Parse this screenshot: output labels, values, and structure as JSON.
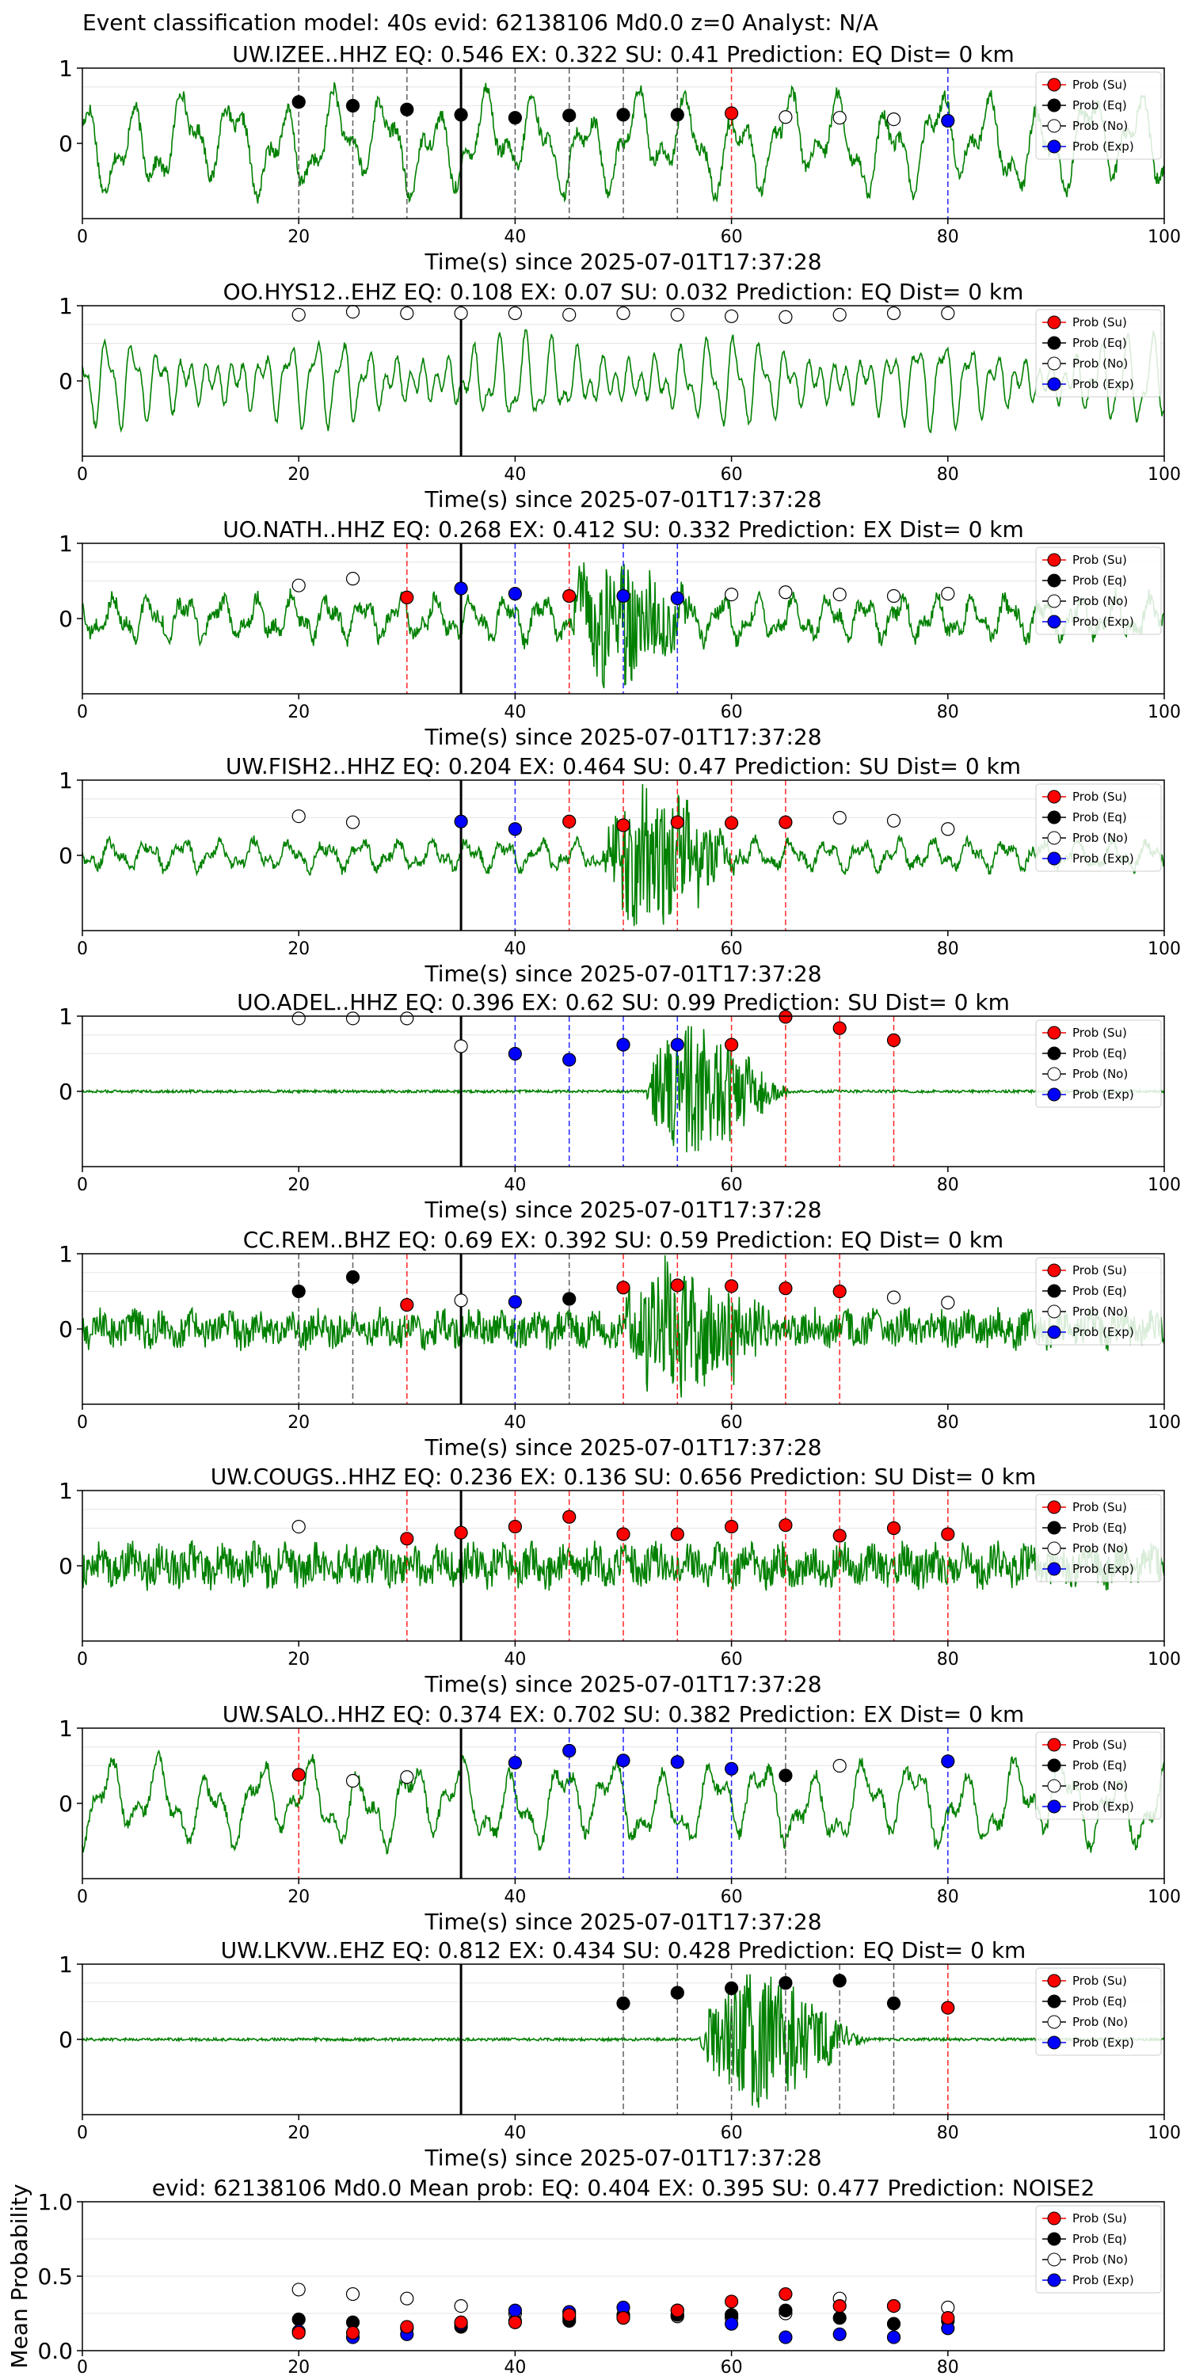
{
  "figure_title": "Event classification model: 40s evid: 62138106 Md0.0 z=0 Analyst: N/A",
  "legend_labels": [
    "Prob (Su)",
    "Prob (Eq)",
    "Prob (No)",
    "Prob (Exp)"
  ],
  "colors": {
    "waveform": "#008000",
    "su": "#ff0000",
    "eq": "#000000",
    "no": "#ffffff",
    "exp": "#0000ff",
    "origin_line": "#000000"
  },
  "chart_data": [
    {
      "type": "line",
      "title": "UW.IZEE..HHZ   EQ: 0.546  EX: 0.322  SU: 0.41   Prediction: EQ    Dist= 0 km",
      "xlabel": "Time(s) since 2025-07-01T17:37:28",
      "xlim": [
        0,
        100
      ],
      "ylim": [
        -1,
        1
      ],
      "xticks": [
        0,
        20,
        40,
        60,
        80,
        100
      ],
      "yticks": [
        0,
        1
      ],
      "origin_time": 35,
      "waveform": {
        "style": "low_frequency",
        "amplitude": 0.75,
        "burst": null
      },
      "markers": [
        {
          "t": 20,
          "p": 0.55,
          "cls": "eq"
        },
        {
          "t": 25,
          "p": 0.5,
          "cls": "eq"
        },
        {
          "t": 30,
          "p": 0.45,
          "cls": "eq"
        },
        {
          "t": 35,
          "p": 0.38,
          "cls": "eq"
        },
        {
          "t": 40,
          "p": 0.34,
          "cls": "eq"
        },
        {
          "t": 45,
          "p": 0.37,
          "cls": "eq"
        },
        {
          "t": 50,
          "p": 0.38,
          "cls": "eq"
        },
        {
          "t": 55,
          "p": 0.38,
          "cls": "eq"
        },
        {
          "t": 60,
          "p": 0.4,
          "cls": "su"
        },
        {
          "t": 65,
          "p": 0.35,
          "cls": "no"
        },
        {
          "t": 70,
          "p": 0.34,
          "cls": "no"
        },
        {
          "t": 75,
          "p": 0.32,
          "cls": "no"
        },
        {
          "t": 80,
          "p": 0.3,
          "cls": "exp"
        }
      ]
    },
    {
      "type": "line",
      "title": "OO.HYS12..EHZ   EQ: 0.108  EX: 0.07  SU: 0.032   Prediction: EQ    Dist= 0 km",
      "xlabel": "Time(s) since 2025-07-01T17:37:28",
      "xlim": [
        0,
        100
      ],
      "ylim": [
        -1,
        1
      ],
      "xticks": [
        0,
        20,
        40,
        60,
        80,
        100
      ],
      "yticks": [
        0,
        1
      ],
      "origin_time": 35,
      "waveform": {
        "style": "oscillating",
        "amplitude": 0.8,
        "burst": null
      },
      "markers": [
        {
          "t": 20,
          "p": 0.88,
          "cls": "no"
        },
        {
          "t": 25,
          "p": 0.92,
          "cls": "no"
        },
        {
          "t": 30,
          "p": 0.9,
          "cls": "no"
        },
        {
          "t": 35,
          "p": 0.9,
          "cls": "no"
        },
        {
          "t": 40,
          "p": 0.9,
          "cls": "no"
        },
        {
          "t": 45,
          "p": 0.88,
          "cls": "no"
        },
        {
          "t": 50,
          "p": 0.9,
          "cls": "no"
        },
        {
          "t": 55,
          "p": 0.88,
          "cls": "no"
        },
        {
          "t": 60,
          "p": 0.86,
          "cls": "no"
        },
        {
          "t": 65,
          "p": 0.85,
          "cls": "no"
        },
        {
          "t": 70,
          "p": 0.88,
          "cls": "no"
        },
        {
          "t": 75,
          "p": 0.9,
          "cls": "no"
        },
        {
          "t": 80,
          "p": 0.9,
          "cls": "no"
        }
      ]
    },
    {
      "type": "line",
      "title": "UO.NATH..HHZ   EQ: 0.268  EX: 0.412  SU: 0.332   Prediction: EX    Dist= 0 km",
      "xlabel": "Time(s) since 2025-07-01T17:37:28",
      "xlim": [
        0,
        100
      ],
      "ylim": [
        -1,
        1
      ],
      "xticks": [
        0,
        20,
        40,
        60,
        80,
        100
      ],
      "yticks": [
        0,
        1
      ],
      "origin_time": 35,
      "waveform": {
        "style": "mixed",
        "amplitude": 0.45,
        "burst": [
          45,
          58,
          0.9
        ]
      },
      "markers": [
        {
          "t": 20,
          "p": 0.44,
          "cls": "no"
        },
        {
          "t": 25,
          "p": 0.53,
          "cls": "no"
        },
        {
          "t": 30,
          "p": 0.28,
          "cls": "su"
        },
        {
          "t": 35,
          "p": 0.4,
          "cls": "exp"
        },
        {
          "t": 40,
          "p": 0.33,
          "cls": "exp"
        },
        {
          "t": 45,
          "p": 0.3,
          "cls": "su"
        },
        {
          "t": 50,
          "p": 0.3,
          "cls": "exp"
        },
        {
          "t": 55,
          "p": 0.27,
          "cls": "exp"
        },
        {
          "t": 60,
          "p": 0.32,
          "cls": "no"
        },
        {
          "t": 65,
          "p": 0.35,
          "cls": "no"
        },
        {
          "t": 70,
          "p": 0.32,
          "cls": "no"
        },
        {
          "t": 75,
          "p": 0.3,
          "cls": "no"
        },
        {
          "t": 80,
          "p": 0.33,
          "cls": "no"
        }
      ]
    },
    {
      "type": "line",
      "title": "UW.FISH2..HHZ   EQ: 0.204  EX: 0.464  SU: 0.47   Prediction: SU    Dist= 0 km",
      "xlabel": "Time(s) since 2025-07-01T17:37:28",
      "xlim": [
        0,
        100
      ],
      "ylim": [
        -1,
        1
      ],
      "xticks": [
        0,
        20,
        40,
        60,
        80,
        100
      ],
      "yticks": [
        0,
        1
      ],
      "origin_time": 35,
      "waveform": {
        "style": "mixed",
        "amplitude": 0.3,
        "burst": [
          48,
          62,
          0.95
        ]
      },
      "markers": [
        {
          "t": 20,
          "p": 0.52,
          "cls": "no"
        },
        {
          "t": 25,
          "p": 0.44,
          "cls": "no"
        },
        {
          "t": 35,
          "p": 0.45,
          "cls": "exp"
        },
        {
          "t": 40,
          "p": 0.35,
          "cls": "exp"
        },
        {
          "t": 45,
          "p": 0.45,
          "cls": "su"
        },
        {
          "t": 50,
          "p": 0.4,
          "cls": "su"
        },
        {
          "t": 55,
          "p": 0.44,
          "cls": "su"
        },
        {
          "t": 60,
          "p": 0.43,
          "cls": "su"
        },
        {
          "t": 65,
          "p": 0.44,
          "cls": "su"
        },
        {
          "t": 70,
          "p": 0.5,
          "cls": "no"
        },
        {
          "t": 75,
          "p": 0.46,
          "cls": "no"
        },
        {
          "t": 80,
          "p": 0.35,
          "cls": "no"
        }
      ]
    },
    {
      "type": "line",
      "title": "UO.ADEL..HHZ   EQ: 0.396  EX: 0.62  SU: 0.99   Prediction: SU    Dist= 0 km",
      "xlabel": "Time(s) since 2025-07-01T17:37:28",
      "xlim": [
        0,
        100
      ],
      "ylim": [
        -1,
        1
      ],
      "xticks": [
        0,
        20,
        40,
        60,
        80,
        100
      ],
      "yticks": [
        0,
        1
      ],
      "origin_time": 35,
      "waveform": {
        "style": "quiet",
        "amplitude": 0.03,
        "burst": [
          52,
          66,
          0.95
        ]
      },
      "markers": [
        {
          "t": 20,
          "p": 0.97,
          "cls": "no"
        },
        {
          "t": 25,
          "p": 0.97,
          "cls": "no"
        },
        {
          "t": 30,
          "p": 0.97,
          "cls": "no"
        },
        {
          "t": 35,
          "p": 0.6,
          "cls": "no"
        },
        {
          "t": 40,
          "p": 0.5,
          "cls": "exp"
        },
        {
          "t": 45,
          "p": 0.42,
          "cls": "exp"
        },
        {
          "t": 50,
          "p": 0.62,
          "cls": "exp"
        },
        {
          "t": 55,
          "p": 0.62,
          "cls": "exp"
        },
        {
          "t": 60,
          "p": 0.62,
          "cls": "su"
        },
        {
          "t": 65,
          "p": 0.99,
          "cls": "su"
        },
        {
          "t": 70,
          "p": 0.84,
          "cls": "su"
        },
        {
          "t": 75,
          "p": 0.68,
          "cls": "su"
        }
      ]
    },
    {
      "type": "line",
      "title": "CC.REM..BHZ   EQ: 0.69  EX: 0.392  SU: 0.59   Prediction: EQ    Dist= 0 km",
      "xlabel": "Time(s) since 2025-07-01T17:37:28",
      "xlim": [
        0,
        100
      ],
      "ylim": [
        -1,
        1
      ],
      "xticks": [
        0,
        20,
        40,
        60,
        80,
        100
      ],
      "yticks": [
        0,
        1
      ],
      "origin_time": 35,
      "waveform": {
        "style": "noisy",
        "amplitude": 0.4,
        "burst": [
          50,
          66,
          0.9
        ]
      },
      "markers": [
        {
          "t": 20,
          "p": 0.5,
          "cls": "eq"
        },
        {
          "t": 25,
          "p": 0.69,
          "cls": "eq"
        },
        {
          "t": 30,
          "p": 0.32,
          "cls": "su"
        },
        {
          "t": 35,
          "p": 0.38,
          "cls": "no"
        },
        {
          "t": 40,
          "p": 0.36,
          "cls": "exp"
        },
        {
          "t": 45,
          "p": 0.4,
          "cls": "eq"
        },
        {
          "t": 50,
          "p": 0.55,
          "cls": "su"
        },
        {
          "t": 55,
          "p": 0.58,
          "cls": "su"
        },
        {
          "t": 60,
          "p": 0.57,
          "cls": "su"
        },
        {
          "t": 65,
          "p": 0.54,
          "cls": "su"
        },
        {
          "t": 70,
          "p": 0.5,
          "cls": "su"
        },
        {
          "t": 75,
          "p": 0.42,
          "cls": "no"
        },
        {
          "t": 80,
          "p": 0.35,
          "cls": "no"
        }
      ]
    },
    {
      "type": "line",
      "title": "UW.COUGS..HHZ   EQ: 0.236  EX: 0.136  SU: 0.656   Prediction: SU    Dist= 0 km",
      "xlabel": "Time(s) since 2025-07-01T17:37:28",
      "xlim": [
        0,
        100
      ],
      "ylim": [
        -1,
        1
      ],
      "xticks": [
        0,
        20,
        40,
        60,
        80,
        100
      ],
      "yticks": [
        0,
        1
      ],
      "origin_time": 35,
      "waveform": {
        "style": "noisy",
        "amplitude": 0.45,
        "burst": null
      },
      "markers": [
        {
          "t": 20,
          "p": 0.52,
          "cls": "no"
        },
        {
          "t": 30,
          "p": 0.36,
          "cls": "su"
        },
        {
          "t": 35,
          "p": 0.44,
          "cls": "su"
        },
        {
          "t": 40,
          "p": 0.52,
          "cls": "su"
        },
        {
          "t": 45,
          "p": 0.65,
          "cls": "su"
        },
        {
          "t": 50,
          "p": 0.42,
          "cls": "su"
        },
        {
          "t": 55,
          "p": 0.42,
          "cls": "su"
        },
        {
          "t": 60,
          "p": 0.52,
          "cls": "su"
        },
        {
          "t": 65,
          "p": 0.54,
          "cls": "su"
        },
        {
          "t": 70,
          "p": 0.4,
          "cls": "su"
        },
        {
          "t": 75,
          "p": 0.5,
          "cls": "su"
        },
        {
          "t": 80,
          "p": 0.42,
          "cls": "su"
        }
      ]
    },
    {
      "type": "line",
      "title": "UW.SALO..HHZ   EQ: 0.374  EX: 0.702  SU: 0.382   Prediction: EX    Dist= 0 km",
      "xlabel": "Time(s) since 2025-07-01T17:37:28",
      "xlim": [
        0,
        100
      ],
      "ylim": [
        -1,
        1
      ],
      "xticks": [
        0,
        20,
        40,
        60,
        80,
        100
      ],
      "yticks": [
        0,
        1
      ],
      "origin_time": 35,
      "waveform": {
        "style": "low_frequency",
        "amplitude": 0.65,
        "burst": null
      },
      "markers": [
        {
          "t": 20,
          "p": 0.38,
          "cls": "su"
        },
        {
          "t": 25,
          "p": 0.3,
          "cls": "no"
        },
        {
          "t": 30,
          "p": 0.35,
          "cls": "no"
        },
        {
          "t": 40,
          "p": 0.54,
          "cls": "exp"
        },
        {
          "t": 45,
          "p": 0.7,
          "cls": "exp"
        },
        {
          "t": 50,
          "p": 0.57,
          "cls": "exp"
        },
        {
          "t": 55,
          "p": 0.55,
          "cls": "exp"
        },
        {
          "t": 60,
          "p": 0.46,
          "cls": "exp"
        },
        {
          "t": 65,
          "p": 0.37,
          "cls": "eq"
        },
        {
          "t": 70,
          "p": 0.5,
          "cls": "no"
        },
        {
          "t": 80,
          "p": 0.56,
          "cls": "exp"
        }
      ]
    },
    {
      "type": "line",
      "title": "UW.LKVW..EHZ   EQ: 0.812  EX: 0.434  SU: 0.428   Prediction: EQ    Dist= 0 km",
      "xlabel": "Time(s) since 2025-07-01T17:37:28",
      "xlim": [
        0,
        100
      ],
      "ylim": [
        -1,
        1
      ],
      "xticks": [
        0,
        20,
        40,
        60,
        80,
        100
      ],
      "yticks": [
        0,
        1
      ],
      "origin_time": 35,
      "waveform": {
        "style": "quiet",
        "amplitude": 0.03,
        "burst": [
          57,
          73,
          0.95
        ]
      },
      "markers": [
        {
          "t": 50,
          "p": 0.48,
          "cls": "eq"
        },
        {
          "t": 55,
          "p": 0.62,
          "cls": "eq"
        },
        {
          "t": 60,
          "p": 0.68,
          "cls": "eq"
        },
        {
          "t": 65,
          "p": 0.75,
          "cls": "eq"
        },
        {
          "t": 70,
          "p": 0.78,
          "cls": "eq"
        },
        {
          "t": 75,
          "p": 0.48,
          "cls": "eq"
        },
        {
          "t": 80,
          "p": 0.42,
          "cls": "su"
        }
      ]
    },
    {
      "type": "scatter",
      "title": "evid: 62138106  Md0.0   Mean prob:    EQ: 0.404  EX: 0.395  SU: 0.477   Prediction: NOISE2",
      "ylabel": "Mean Probability",
      "xlim": [
        0,
        100
      ],
      "ylim": [
        0,
        1
      ],
      "xticks": [
        0,
        20,
        40,
        60,
        80
      ],
      "yticks": [
        0.0,
        0.5,
        1.0
      ],
      "x": [
        20,
        25,
        30,
        35,
        40,
        45,
        50,
        55,
        60,
        65,
        70,
        75,
        80
      ],
      "series": [
        {
          "name": "Prob (No)",
          "cls": "no",
          "values": [
            0.41,
            0.38,
            0.35,
            0.3,
            0.25,
            0.22,
            0.24,
            0.23,
            0.22,
            0.25,
            0.35,
            0.3,
            0.29
          ]
        },
        {
          "name": "Prob (Eq)",
          "cls": "eq",
          "values": [
            0.21,
            0.19,
            0.15,
            0.16,
            0.2,
            0.2,
            0.23,
            0.24,
            0.24,
            0.27,
            0.22,
            0.18,
            0.2
          ]
        },
        {
          "name": "Prob (Exp)",
          "cls": "exp",
          "values": [
            0.13,
            0.09,
            0.11,
            0.18,
            0.27,
            0.26,
            0.29,
            0.27,
            0.18,
            0.09,
            0.11,
            0.09,
            0.15
          ]
        },
        {
          "name": "Prob (Su)",
          "cls": "su",
          "values": [
            0.12,
            0.12,
            0.16,
            0.19,
            0.19,
            0.24,
            0.22,
            0.27,
            0.33,
            0.38,
            0.3,
            0.3,
            0.22
          ]
        }
      ]
    }
  ]
}
